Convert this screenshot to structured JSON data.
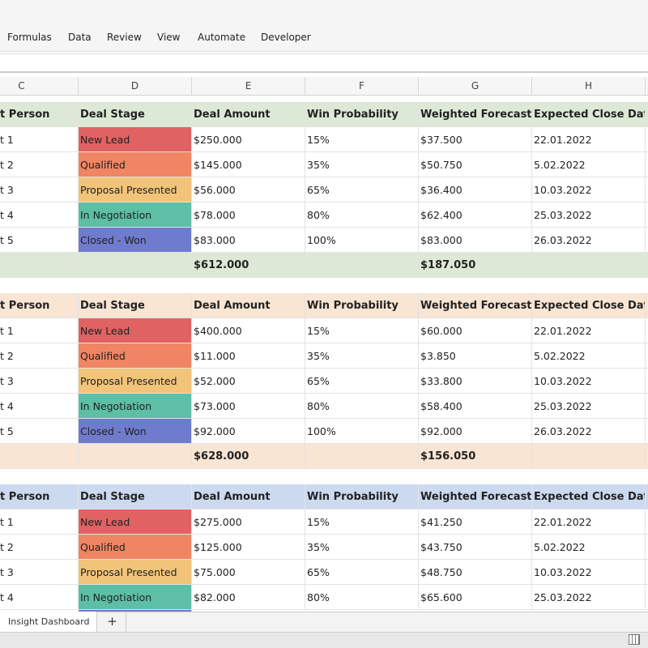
{
  "menu": [
    "Formulas",
    "Data",
    "Review",
    "View",
    "Automate",
    "Developer"
  ],
  "column_headers": [
    "C",
    "D",
    "E",
    "F",
    "G",
    "H"
  ],
  "tables": [
    {
      "header": [
        "t Person",
        "Deal Stage",
        "Deal Amount",
        "Win Probability",
        "Weighted Forecast",
        "Expected Close Date"
      ],
      "rows": [
        [
          "t 1",
          "New Lead",
          "$250.000",
          "15%",
          "$37.500",
          "22.01.2022"
        ],
        [
          "t 2",
          "Qualified",
          "$145.000",
          "35%",
          "$50.750",
          "5.02.2022"
        ],
        [
          "t 3",
          "Proposal Presented",
          "$56.000",
          "65%",
          "$36.400",
          "10.03.2022"
        ],
        [
          "t 4",
          "In Negotiation",
          "$78.000",
          "80%",
          "$62.400",
          "25.03.2022"
        ],
        [
          "t 5",
          "Closed - Won",
          "$83.000",
          "100%",
          "$83.000",
          "26.03.2022"
        ]
      ],
      "total": {
        "amount": "$612.000",
        "forecast": "$187.050"
      }
    },
    {
      "header": [
        "t Person",
        "Deal Stage",
        "Deal Amount",
        "Win Probability",
        "Weighted Forecast",
        "Expected Close Date"
      ],
      "rows": [
        [
          "t 1",
          "New Lead",
          "$400.000",
          "15%",
          "$60.000",
          "22.01.2022"
        ],
        [
          "t 2",
          "Qualified",
          "$11.000",
          "35%",
          "$3.850",
          "5.02.2022"
        ],
        [
          "t 3",
          "Proposal Presented",
          "$52.000",
          "65%",
          "$33.800",
          "10.03.2022"
        ],
        [
          "t 4",
          "In Negotiation",
          "$73.000",
          "80%",
          "$58.400",
          "25.03.2022"
        ],
        [
          "t 5",
          "Closed - Won",
          "$92.000",
          "100%",
          "$92.000",
          "26.03.2022"
        ]
      ],
      "total": {
        "amount": "$628.000",
        "forecast": "$156.050"
      }
    },
    {
      "header": [
        "t Person",
        "Deal Stage",
        "Deal Amount",
        "Win Probability",
        "Weighted Forecast",
        "Expected Close Date"
      ],
      "rows": [
        [
          "t 1",
          "New Lead",
          "$275.000",
          "15%",
          "$41.250",
          "22.01.2022"
        ],
        [
          "t 2",
          "Qualified",
          "$125.000",
          "35%",
          "$43.750",
          "5.02.2022"
        ],
        [
          "t 3",
          "Proposal Presented",
          "$75.000",
          "65%",
          "$48.750",
          "10.03.2022"
        ],
        [
          "t 4",
          "In Negotiation",
          "$82.000",
          "80%",
          "$65.600",
          "25.03.2022"
        ]
      ]
    }
  ],
  "sheet_tabs": [
    "Insight Dashboard"
  ],
  "add_sheet": "+"
}
